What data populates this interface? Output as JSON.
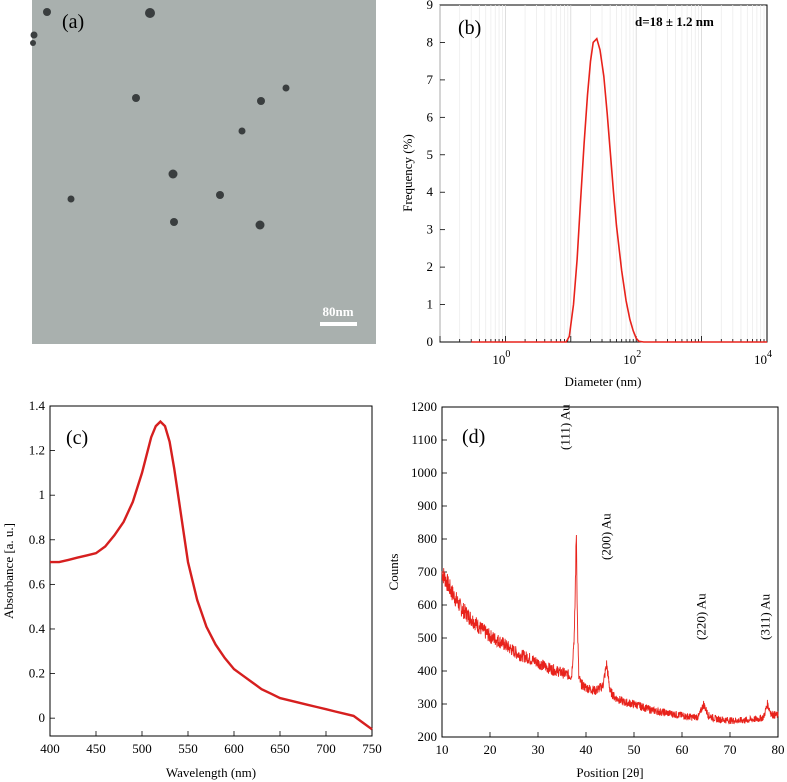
{
  "panels": {
    "a": {
      "label": "(a)",
      "scalebar": "80nm",
      "particles": 13,
      "background": "#a9b0ae",
      "particle_color": "#3a3e3f"
    },
    "b": {
      "label": "(b)",
      "annotation": "d=18 ± 1.2 nm",
      "line_color": "#e8221b"
    },
    "c": {
      "label": "(c)",
      "line_color": "#d61f1f"
    },
    "d": {
      "label": "(d)",
      "line_color": "#e8221b"
    }
  },
  "chart_data": [
    {
      "id": "b",
      "type": "line",
      "title": "",
      "xlabel": "Diameter (nm)",
      "ylabel": "Frequency (%)",
      "xscale": "log",
      "xlim": [
        0.1,
        10000
      ],
      "ylim": [
        0,
        9
      ],
      "xticks": [
        {
          "base": "10",
          "exp": "0"
        },
        {
          "base": "10",
          "exp": "2"
        },
        {
          "base": "10",
          "exp": "4"
        }
      ],
      "yticks": [
        "0",
        "1",
        "2",
        "3",
        "4",
        "5",
        "6",
        "7",
        "8",
        "9"
      ],
      "grid": true,
      "x": [
        0.3,
        8.5,
        9.5,
        11,
        12.5,
        14,
        16,
        18,
        20,
        22,
        25,
        28,
        32,
        36,
        40,
        45,
        50,
        60,
        70,
        80,
        90,
        100,
        110,
        130,
        200,
        1000,
        10000
      ],
      "y": [
        0,
        0,
        0.15,
        1.0,
        2.2,
        3.7,
        5.3,
        6.6,
        7.5,
        8.0,
        8.1,
        7.8,
        7.1,
        6.1,
        5.1,
        4.0,
        3.1,
        1.9,
        1.1,
        0.6,
        0.3,
        0.1,
        0.02,
        0,
        0,
        0,
        0
      ]
    },
    {
      "id": "c",
      "type": "line",
      "title": "",
      "xlabel": "Wavelength (nm)",
      "ylabel": "Absorbance [a. u.]",
      "xlim": [
        400,
        750
      ],
      "ylim": [
        -0.08,
        1.4
      ],
      "xticks": [
        "400",
        "450",
        "500",
        "550",
        "600",
        "650",
        "700",
        "750"
      ],
      "yticks": [
        "0",
        "0.2",
        "0.4",
        "0.6",
        "0.8",
        "1",
        "1.2",
        "1.4"
      ],
      "grid": false,
      "x": [
        400,
        410,
        420,
        430,
        440,
        450,
        460,
        470,
        480,
        490,
        500,
        505,
        510,
        515,
        520,
        525,
        530,
        535,
        540,
        545,
        550,
        560,
        570,
        580,
        590,
        600,
        610,
        620,
        630,
        640,
        650,
        660,
        670,
        680,
        690,
        700,
        710,
        720,
        730,
        740,
        750
      ],
      "y": [
        0.7,
        0.7,
        0.71,
        0.72,
        0.73,
        0.74,
        0.77,
        0.82,
        0.88,
        0.97,
        1.1,
        1.18,
        1.26,
        1.31,
        1.33,
        1.31,
        1.24,
        1.12,
        0.98,
        0.84,
        0.7,
        0.53,
        0.41,
        0.33,
        0.27,
        0.22,
        0.19,
        0.16,
        0.13,
        0.11,
        0.09,
        0.08,
        0.07,
        0.06,
        0.05,
        0.04,
        0.03,
        0.02,
        0.01,
        -0.02,
        -0.05
      ]
    },
    {
      "id": "d",
      "type": "line",
      "title": "",
      "xlabel": "Position [2θ]",
      "ylabel": "Counts",
      "xlim": [
        10,
        80
      ],
      "ylim": [
        200,
        1200
      ],
      "xticks": [
        "10",
        "20",
        "30",
        "40",
        "50",
        "60",
        "70",
        "80"
      ],
      "yticks": [
        "200",
        "300",
        "400",
        "500",
        "600",
        "700",
        "800",
        "900",
        "1000",
        "1100",
        "1200"
      ],
      "grid": false,
      "x": [
        10,
        12,
        14,
        16,
        18,
        20,
        22,
        24,
        26,
        28,
        30,
        32,
        34,
        36,
        37,
        37.6,
        38.0,
        38.2,
        38.5,
        39,
        40,
        42,
        43.5,
        44.3,
        45,
        46,
        48,
        50,
        52,
        54,
        56,
        58,
        60,
        62,
        63.5,
        64.5,
        65.5,
        67,
        70,
        72,
        74,
        76,
        77,
        77.8,
        78.6,
        80
      ],
      "y": [
        700,
        640,
        590,
        560,
        530,
        505,
        490,
        470,
        450,
        440,
        425,
        410,
        400,
        390,
        385,
        520,
        830,
        560,
        380,
        360,
        350,
        340,
        355,
        420,
        340,
        320,
        305,
        300,
        290,
        280,
        275,
        270,
        265,
        260,
        262,
        300,
        265,
        255,
        250,
        250,
        252,
        255,
        260,
        300,
        270,
        265
      ],
      "noise": 30,
      "peaks": [
        {
          "label": "(111) Au",
          "x": 38.2
        },
        {
          "label": "(200) Au",
          "x": 44.3
        },
        {
          "label": "(220) Au",
          "x": 64.5
        },
        {
          "label": "(311) Au",
          "x": 77.8
        }
      ]
    }
  ]
}
